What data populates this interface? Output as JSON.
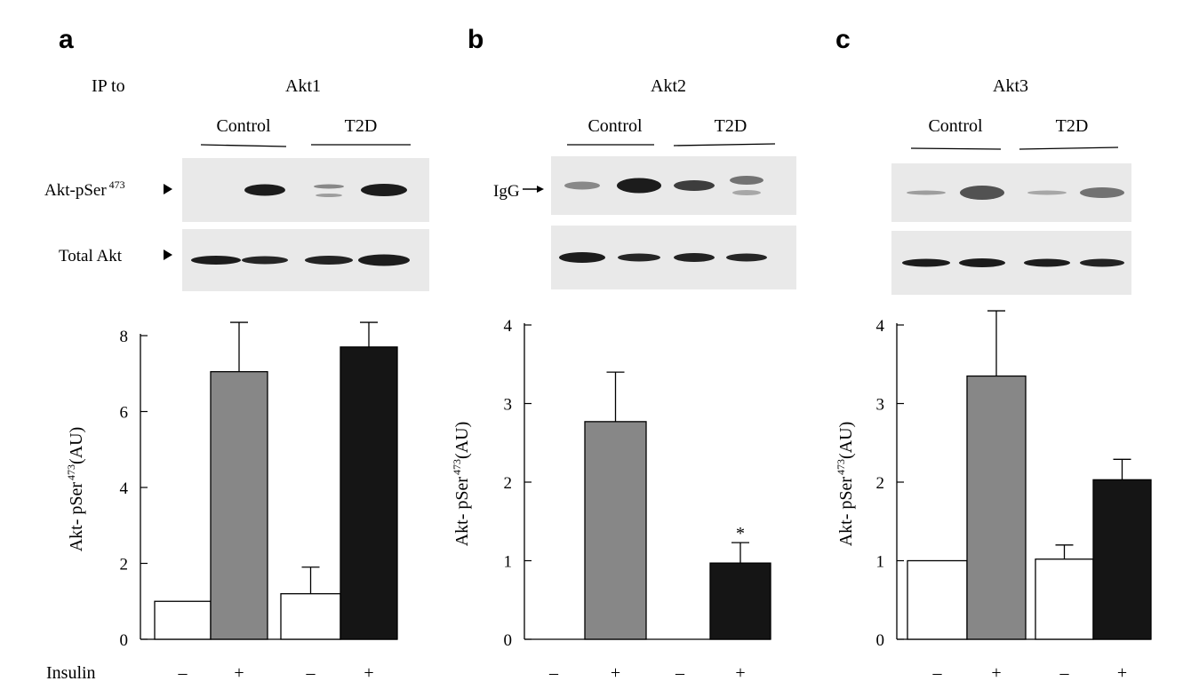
{
  "figure": {
    "row_label_ip": "IP to",
    "row_label_insulin": "Insulin",
    "band_labels": {
      "phospho": "Akt-pSer",
      "phospho_sup": "473",
      "total": "Total Akt",
      "igg": "IgG"
    },
    "colors": {
      "control_minus": "#ffffff",
      "control_plus": "#878787",
      "t2d_minus": "#ffffff",
      "t2d_plus": "#151515",
      "blot_bg": "#e9e9e9",
      "band": "#111111"
    }
  },
  "chart_data": [
    {
      "panel": "a",
      "isoform": "Akt1",
      "type": "bar",
      "group_labels": [
        "Control",
        "T2D"
      ],
      "categories": [
        "–",
        "+",
        "–",
        "+"
      ],
      "values": [
        1.0,
        7.05,
        1.2,
        7.7
      ],
      "errors": [
        0,
        1.3,
        0.7,
        0.65
      ],
      "ylabel": "Akt- pSer",
      "ylabel_sup": "473",
      "ylabel_unit": "(AU)",
      "ylim": [
        0,
        8
      ],
      "yticks": [
        0,
        2,
        4,
        6,
        8
      ],
      "annotations": []
    },
    {
      "panel": "b",
      "isoform": "Akt2",
      "type": "bar",
      "group_labels": [
        "Control",
        "T2D"
      ],
      "categories": [
        "–",
        "+",
        "–",
        "+"
      ],
      "values": [
        0,
        2.77,
        0,
        0.97
      ],
      "errors": [
        0,
        0.63,
        0,
        0.26
      ],
      "ylabel": "Akt- pSer",
      "ylabel_sup": "473",
      "ylabel_unit": "(AU)",
      "ylim": [
        0,
        4
      ],
      "yticks": [
        0,
        1,
        2,
        3,
        4
      ],
      "annotations": [
        {
          "bar": 3,
          "text": "*"
        }
      ]
    },
    {
      "panel": "c",
      "isoform": "Akt3",
      "type": "bar",
      "group_labels": [
        "Control",
        "T2D"
      ],
      "categories": [
        "–",
        "+",
        "–",
        "+"
      ],
      "values": [
        1.0,
        3.35,
        1.02,
        2.03
      ],
      "errors": [
        0,
        0.83,
        0.18,
        0.26
      ],
      "ylabel": "Akt- pSer",
      "ylabel_sup": "473",
      "ylabel_unit": "(AU)",
      "ylim": [
        0,
        4
      ],
      "yticks": [
        0,
        1,
        2,
        3,
        4
      ],
      "annotations": []
    }
  ]
}
